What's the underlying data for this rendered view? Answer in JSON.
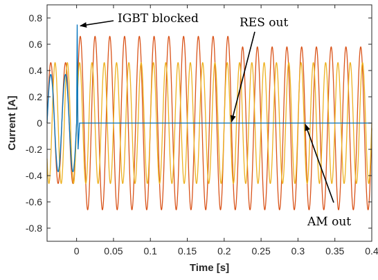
{
  "chart_data": {
    "type": "line",
    "xlabel": "Time [s]",
    "ylabel": "Current [A]",
    "xlim": [
      -0.04,
      0.4
    ],
    "ylim": [
      -0.9,
      0.9
    ],
    "xticks": [
      0,
      0.05,
      0.1,
      0.15,
      0.2,
      0.25,
      0.3,
      0.35,
      0.4
    ],
    "xtick_labels": [
      "0",
      "0.05",
      "0.1",
      "0.15",
      "0.2",
      "0.25",
      "0.3",
      "0.35",
      "0.4"
    ],
    "yticks": [
      0.8,
      0.6,
      0.4,
      0.2,
      0,
      -0.2,
      -0.4,
      -0.6,
      -0.8
    ],
    "ytick_labels": [
      "0.8",
      "0.6",
      "0.4",
      "0.2",
      "0",
      "-0.2",
      "-0.4",
      "-0.6",
      "-0.8"
    ],
    "grid": false,
    "series": [
      {
        "color": "#D95319",
        "frequency_hz": 50,
        "segments": [
          {
            "t_start": -0.04,
            "t_end": 0.0,
            "amplitude": 0.46,
            "offset": 0.0
          },
          {
            "t_start": 0.0,
            "t_end": 0.21,
            "amplitude": 0.66,
            "offset": 0.0
          },
          {
            "t_start": 0.21,
            "t_end": 0.4,
            "amplitude": 0.62,
            "offset": -0.04
          }
        ]
      },
      {
        "color": "#EDB120",
        "frequency_hz": 60,
        "segments": [
          {
            "t_start": -0.04,
            "t_end": 0.4,
            "amplitude": 0.46,
            "offset": 0.0
          }
        ]
      },
      {
        "color": "#0072BD",
        "frequency_hz": 50,
        "segments": [
          {
            "t_start": -0.04,
            "t_end": 0.0,
            "amplitude": 0.37,
            "offset": 0.0
          }
        ],
        "spike": [
          {
            "t": 0.0,
            "y": 0.0
          },
          {
            "t": 0.0008,
            "y": 0.75
          },
          {
            "t": 0.002,
            "y": -0.2
          },
          {
            "t": 0.004,
            "y": 0.0
          }
        ],
        "flat_after": {
          "t_start": 0.004,
          "t_end": 0.4,
          "y": 0.0
        }
      }
    ],
    "annotations": [
      {
        "text": "IGBT blocked",
        "arrow_to": [
          0.005,
          0.74
        ]
      },
      {
        "text": "RES out",
        "arrow_to": [
          0.21,
          0.01
        ]
      },
      {
        "text": "AM out",
        "arrow_to": [
          0.31,
          -0.01
        ]
      }
    ]
  }
}
